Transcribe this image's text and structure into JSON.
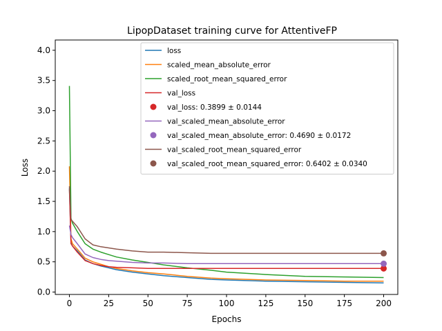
{
  "chart_data": {
    "type": "line",
    "title": "LipopDataset training curve for AttentiveFP",
    "xlabel": "Epochs",
    "ylabel": "Loss",
    "xlim": [
      -9,
      209
    ],
    "ylim": [
      -0.04,
      4.17
    ],
    "xticks": [
      0,
      25,
      50,
      75,
      100,
      125,
      150,
      175,
      200
    ],
    "xtick_labels": [
      "0",
      "25",
      "50",
      "75",
      "100",
      "125",
      "150",
      "175",
      "200"
    ],
    "yticks": [
      0.0,
      0.5,
      1.0,
      1.5,
      2.0,
      2.5,
      3.0,
      3.5,
      4.0
    ],
    "ytick_labels": [
      "0.0",
      "0.5",
      "1.0",
      "1.5",
      "2.0",
      "2.5",
      "3.0",
      "3.5",
      "4.0"
    ],
    "grid": false,
    "legend_placement": "upper-right",
    "series": [
      {
        "name": "loss",
        "color": "#1f77b4",
        "x": [
          0,
          1,
          2,
          5,
          10,
          15,
          20,
          25,
          30,
          40,
          50,
          60,
          75,
          90,
          100,
          125,
          150,
          175,
          200
        ],
        "y": [
          1.72,
          0.82,
          0.76,
          0.68,
          0.53,
          0.47,
          0.43,
          0.4,
          0.37,
          0.33,
          0.3,
          0.27,
          0.24,
          0.21,
          0.2,
          0.18,
          0.17,
          0.16,
          0.15
        ]
      },
      {
        "name": "scaled_mean_absolute_error",
        "color": "#ff7f0e",
        "x": [
          0,
          1,
          2,
          5,
          10,
          15,
          20,
          25,
          30,
          40,
          50,
          60,
          75,
          90,
          100,
          125,
          150,
          175,
          200
        ],
        "y": [
          2.08,
          0.88,
          0.8,
          0.71,
          0.56,
          0.5,
          0.46,
          0.42,
          0.39,
          0.35,
          0.32,
          0.3,
          0.26,
          0.23,
          0.22,
          0.2,
          0.19,
          0.18,
          0.18
        ]
      },
      {
        "name": "scaled_root_mean_squared_error",
        "color": "#2ca02c",
        "x": [
          0,
          1,
          2,
          5,
          10,
          15,
          20,
          25,
          30,
          40,
          50,
          60,
          75,
          90,
          100,
          125,
          150,
          175,
          200
        ],
        "y": [
          3.41,
          1.22,
          1.14,
          1.0,
          0.8,
          0.71,
          0.66,
          0.62,
          0.58,
          0.53,
          0.49,
          0.45,
          0.4,
          0.36,
          0.33,
          0.29,
          0.26,
          0.25,
          0.24
        ]
      },
      {
        "name": "val_loss",
        "color": "#d62728",
        "x": [
          0,
          1,
          2,
          5,
          10,
          15,
          20,
          25,
          30,
          40,
          50,
          60,
          75,
          90,
          100,
          125,
          150,
          175,
          200
        ],
        "y": [
          1.7,
          0.8,
          0.76,
          0.66,
          0.52,
          0.47,
          0.44,
          0.42,
          0.41,
          0.4,
          0.39,
          0.39,
          0.39,
          0.39,
          0.39,
          0.39,
          0.39,
          0.39,
          0.39
        ]
      },
      {
        "name": "val_scaled_mean_absolute_error",
        "color": "#9467bd",
        "x": [
          0,
          1,
          2,
          5,
          10,
          15,
          20,
          25,
          30,
          40,
          50,
          60,
          75,
          90,
          100,
          125,
          150,
          175,
          200
        ],
        "y": [
          1.1,
          0.95,
          0.9,
          0.8,
          0.63,
          0.57,
          0.54,
          0.52,
          0.51,
          0.49,
          0.48,
          0.48,
          0.47,
          0.47,
          0.47,
          0.47,
          0.47,
          0.47,
          0.47
        ]
      },
      {
        "name": "val_scaled_root_mean_squared_error",
        "color": "#8c564b",
        "x": [
          0,
          1,
          2,
          5,
          10,
          15,
          20,
          25,
          30,
          40,
          50,
          60,
          75,
          90,
          100,
          125,
          150,
          175,
          200
        ],
        "y": [
          1.75,
          1.2,
          1.17,
          1.08,
          0.88,
          0.78,
          0.75,
          0.73,
          0.71,
          0.68,
          0.66,
          0.66,
          0.65,
          0.64,
          0.64,
          0.64,
          0.64,
          0.64,
          0.64
        ]
      }
    ],
    "final_points": [
      {
        "name": "val_loss: 0.3899 ± 0.0144",
        "color": "#d62728",
        "x": 200,
        "y": 0.3899
      },
      {
        "name": "val_scaled_mean_absolute_error: 0.4690 ± 0.0172",
        "color": "#9467bd",
        "x": 200,
        "y": 0.469
      },
      {
        "name": "val_scaled_root_mean_squared_error: 0.6402 ± 0.0340",
        "color": "#8c564b",
        "x": 200,
        "y": 0.6402
      }
    ],
    "legend": [
      {
        "label": "loss",
        "kind": "line",
        "color": "#1f77b4"
      },
      {
        "label": "scaled_mean_absolute_error",
        "kind": "line",
        "color": "#ff7f0e"
      },
      {
        "label": "scaled_root_mean_squared_error",
        "kind": "line",
        "color": "#2ca02c"
      },
      {
        "label": "val_loss",
        "kind": "line",
        "color": "#d62728"
      },
      {
        "label": "val_loss: 0.3899 ± 0.0144",
        "kind": "marker",
        "color": "#d62728"
      },
      {
        "label": "val_scaled_mean_absolute_error",
        "kind": "line",
        "color": "#9467bd"
      },
      {
        "label": "val_scaled_mean_absolute_error: 0.4690 ± 0.0172",
        "kind": "marker",
        "color": "#9467bd"
      },
      {
        "label": "val_scaled_root_mean_squared_error",
        "kind": "line",
        "color": "#8c564b"
      },
      {
        "label": "val_scaled_root_mean_squared_error: 0.6402 ± 0.0340",
        "kind": "marker",
        "color": "#8c564b"
      }
    ]
  }
}
